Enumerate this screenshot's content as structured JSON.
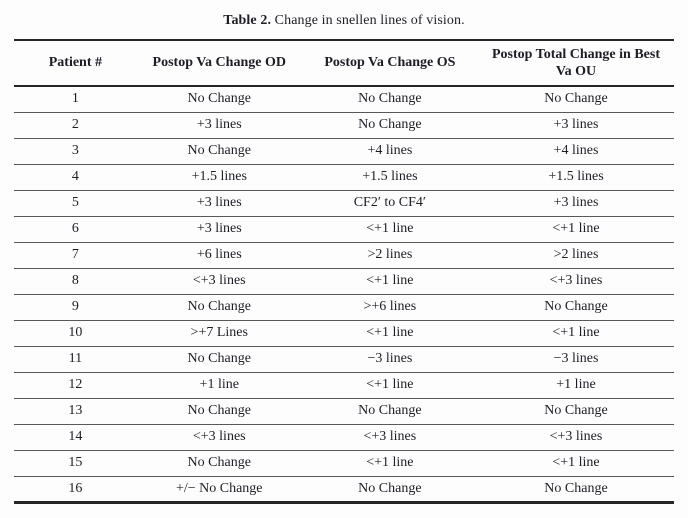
{
  "caption": {
    "label": "Table 2.",
    "text": "Change in snellen lines of vision."
  },
  "table": {
    "columns": [
      "Patient #",
      "Postop Va Change OD",
      "Postop Va Change OS",
      "Postop Total Change in Best Va OU"
    ],
    "rows": [
      [
        "1",
        "No Change",
        "No Change",
        "No Change"
      ],
      [
        "2",
        "+3 lines",
        "No Change",
        "+3 lines"
      ],
      [
        "3",
        "No Change",
        "+4 lines",
        "+4 lines"
      ],
      [
        "4",
        "+1.5 lines",
        "+1.5 lines",
        "+1.5 lines"
      ],
      [
        "5",
        "+3 lines",
        "CF2′ to CF4′",
        "+3 lines"
      ],
      [
        "6",
        "+3 lines",
        "<+1 line",
        "<+1 line"
      ],
      [
        "7",
        "+6 lines",
        ">2 lines",
        ">2 lines"
      ],
      [
        "8",
        "<+3 lines",
        "<+1 line",
        "<+3 lines"
      ],
      [
        "9",
        "No Change",
        ">+6 lines",
        "No Change"
      ],
      [
        "10",
        ">+7 Lines",
        "<+1 line",
        "<+1 line"
      ],
      [
        "11",
        "No Change",
        "−3 lines",
        "−3 lines"
      ],
      [
        "12",
        "+1 line",
        "<+1 line",
        "+1 line"
      ],
      [
        "13",
        "No Change",
        "No Change",
        "No Change"
      ],
      [
        "14",
        "<+3 lines",
        "<+3 lines",
        "<+3 lines"
      ],
      [
        "15",
        "No Change",
        "<+1 line",
        "<+1 line"
      ],
      [
        "16",
        "+/− No Change",
        "No Change",
        "No Change"
      ]
    ]
  },
  "colors": {
    "background": "#fdfdfd",
    "ink": "#1d1d26",
    "rule_heavy": "#262626",
    "rule_light": "#585858"
  }
}
